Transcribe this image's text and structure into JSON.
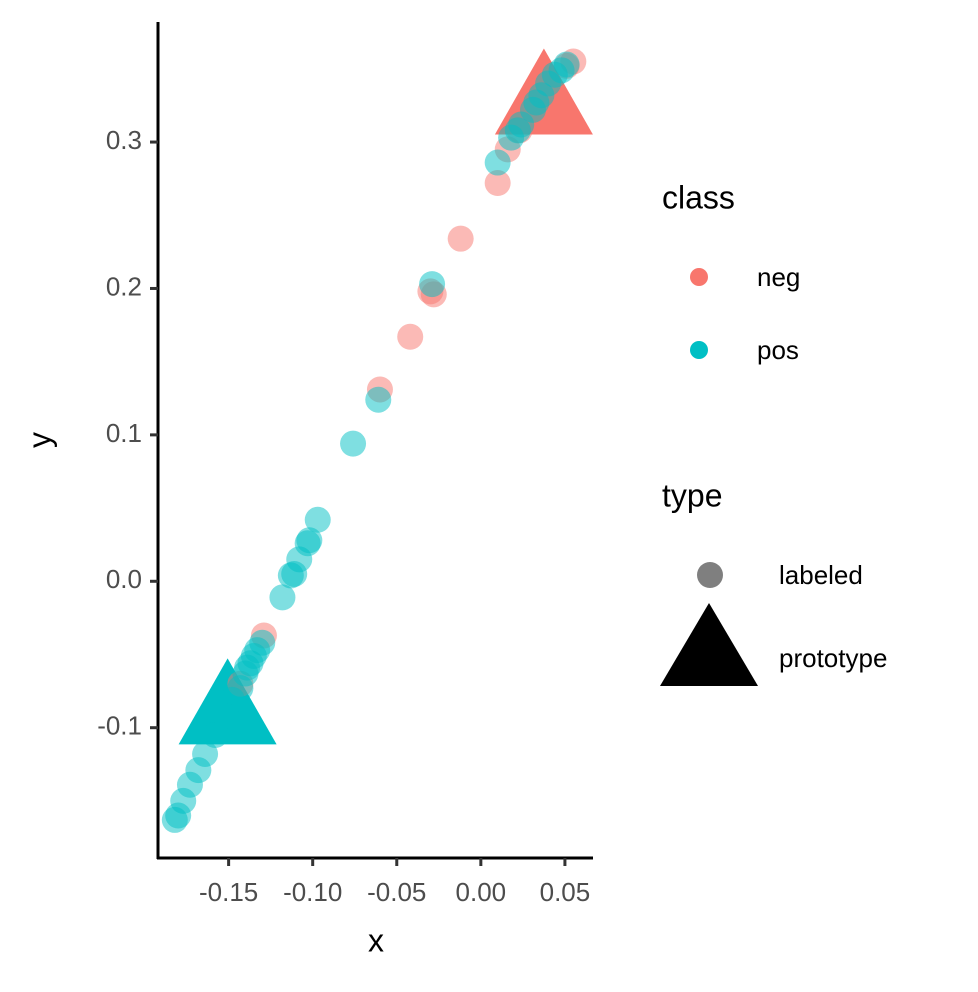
{
  "chart_data": {
    "type": "scatter",
    "xlabel": "x",
    "ylabel": "y",
    "xlim": [
      -0.192,
      0.0667
    ],
    "ylim": [
      -0.189,
      0.382
    ],
    "xticks": [
      -0.15,
      {
        "value": -0.1,
        "label": "-0.10"
      },
      -0.05,
      {
        "value": 0,
        "label": "0.00"
      },
      0.05
    ],
    "yticks": [
      {
        "value": -0.1,
        "label": "-0.1"
      },
      {
        "value": 0,
        "label": "0.0"
      },
      0.1,
      0.2,
      0.3
    ],
    "point_alpha": 0.5,
    "class_legend": {
      "title": "class"
    },
    "type_legend": {
      "title": "type",
      "entries": [
        "labeled",
        "prototype"
      ]
    },
    "series": [
      {
        "name": "neg",
        "color": "#F8766D",
        "x": [
          0.055,
          0.051,
          0.035,
          0.023,
          0.016,
          0.01,
          -0.012,
          -0.028,
          -0.03,
          -0.042,
          -0.06,
          -0.129,
          -0.143
        ],
        "y": [
          0.355,
          0.352,
          0.336,
          0.308,
          0.295,
          0.272,
          0.234,
          0.196,
          0.198,
          0.167,
          0.131,
          -0.037,
          -0.07
        ],
        "prototype_x": 0.0375,
        "prototype_y": 0.325
      },
      {
        "name": "pos",
        "color": "#00BFC4",
        "x": [
          0.048,
          0.051,
          0.044,
          0.04,
          0.036,
          0.033,
          0.031,
          0.024,
          0.022,
          0.018,
          0.01,
          -0.029,
          -0.061,
          -0.076,
          -0.097,
          -0.102,
          -0.103,
          -0.108,
          -0.111,
          -0.113,
          -0.118,
          -0.13,
          -0.133,
          -0.135,
          -0.137,
          -0.139,
          -0.14,
          -0.143,
          -0.148,
          -0.152,
          -0.158,
          -0.164,
          -0.168,
          -0.173,
          -0.177,
          -0.18,
          -0.182
        ],
        "y": [
          0.349,
          0.353,
          0.346,
          0.34,
          0.332,
          0.327,
          0.322,
          0.312,
          0.308,
          0.303,
          0.286,
          0.203,
          0.124,
          0.094,
          0.042,
          0.028,
          0.026,
          0.015,
          0.005,
          0.004,
          -0.011,
          -0.042,
          -0.047,
          -0.051,
          -0.056,
          -0.059,
          -0.063,
          -0.073,
          -0.081,
          -0.092,
          -0.105,
          -0.118,
          -0.129,
          -0.139,
          -0.15,
          -0.16,
          -0.163
        ],
        "prototype_x": -0.1506,
        "prototype_y": -0.0916
      }
    ]
  }
}
